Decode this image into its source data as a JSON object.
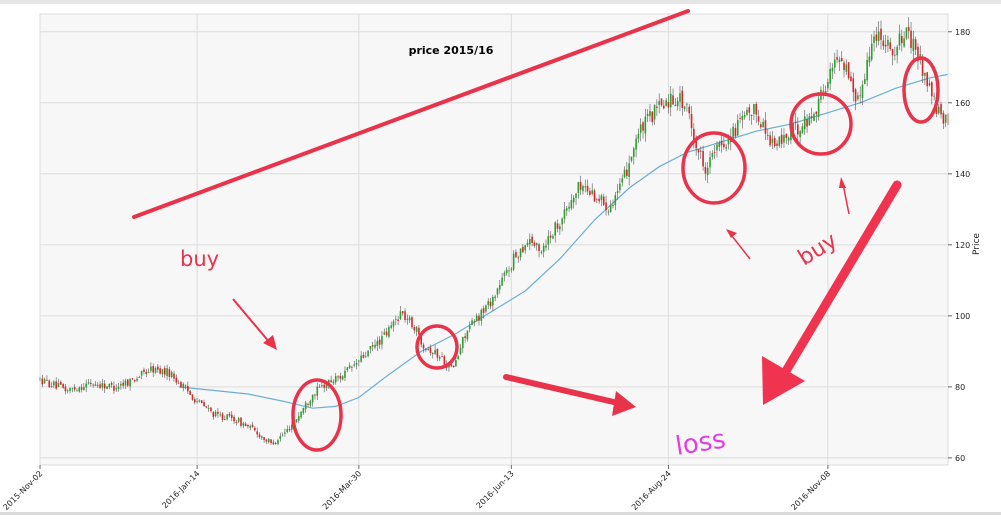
{
  "chart_data": {
    "type": "candlestick",
    "title": "price 2015/16",
    "xlabel": "",
    "ylabel": "Price",
    "ylim": [
      58,
      185
    ],
    "x_range": [
      0,
      393
    ],
    "y_ticks": [
      60,
      80,
      100,
      120,
      140,
      160,
      180
    ],
    "x_ticks": [
      {
        "label": "2015-Nov-02",
        "x": 0
      },
      {
        "label": "2016-Jan-14",
        "x": 68
      },
      {
        "label": "2016-Mar-30",
        "x": 138
      },
      {
        "label": "2016-Jun-13",
        "x": 204
      },
      {
        "label": "2016-Aug-24",
        "x": 272
      },
      {
        "label": "2016-Nov-08",
        "x": 341
      }
    ],
    "grid": true,
    "up_color": "#2ca02c",
    "down_color": "#d62728",
    "ma_color": "#6aaed6",
    "price_path": [
      [
        0,
        82
      ],
      [
        12,
        79
      ],
      [
        22,
        81
      ],
      [
        32,
        80
      ],
      [
        40,
        82
      ],
      [
        48,
        85
      ],
      [
        56,
        84
      ],
      [
        62,
        80
      ],
      [
        68,
        76
      ],
      [
        76,
        72
      ],
      [
        84,
        71
      ],
      [
        92,
        68
      ],
      [
        100,
        64
      ],
      [
        106,
        67
      ],
      [
        112,
        72
      ],
      [
        118,
        78
      ],
      [
        124,
        81
      ],
      [
        130,
        83
      ],
      [
        136,
        86
      ],
      [
        144,
        91
      ],
      [
        150,
        95
      ],
      [
        156,
        101
      ],
      [
        162,
        97
      ],
      [
        166,
        92
      ],
      [
        170,
        90
      ],
      [
        174,
        88
      ],
      [
        178,
        85
      ],
      [
        180,
        87
      ],
      [
        184,
        95
      ],
      [
        190,
        100
      ],
      [
        196,
        105
      ],
      [
        200,
        110
      ],
      [
        206,
        117
      ],
      [
        212,
        122
      ],
      [
        216,
        118
      ],
      [
        222,
        124
      ],
      [
        228,
        130
      ],
      [
        234,
        137
      ],
      [
        240,
        134
      ],
      [
        246,
        131
      ],
      [
        252,
        137
      ],
      [
        258,
        150
      ],
      [
        264,
        156
      ],
      [
        270,
        160
      ],
      [
        276,
        162
      ],
      [
        280,
        158
      ],
      [
        284,
        148
      ],
      [
        288,
        142
      ],
      [
        292,
        146
      ],
      [
        298,
        150
      ],
      [
        304,
        155
      ],
      [
        310,
        158
      ],
      [
        314,
        152
      ],
      [
        318,
        148
      ],
      [
        322,
        150
      ],
      [
        328,
        153
      ],
      [
        334,
        156
      ],
      [
        338,
        162
      ],
      [
        342,
        168
      ],
      [
        346,
        174
      ],
      [
        350,
        168
      ],
      [
        354,
        160
      ],
      [
        358,
        172
      ],
      [
        362,
        180
      ],
      [
        366,
        178
      ],
      [
        370,
        174
      ],
      [
        374,
        180
      ],
      [
        378,
        176
      ],
      [
        382,
        170
      ],
      [
        386,
        162
      ],
      [
        390,
        155
      ],
      [
        393,
        155
      ]
    ],
    "moving_average": [
      [
        60,
        80
      ],
      [
        75,
        79
      ],
      [
        90,
        78
      ],
      [
        105,
        76
      ],
      [
        118,
        74
      ],
      [
        128,
        74.5
      ],
      [
        138,
        77
      ],
      [
        150,
        83
      ],
      [
        165,
        90
      ],
      [
        180,
        95
      ],
      [
        195,
        101
      ],
      [
        210,
        107
      ],
      [
        225,
        116
      ],
      [
        240,
        127
      ],
      [
        255,
        136
      ],
      [
        268,
        142
      ],
      [
        280,
        146
      ],
      [
        295,
        149
      ],
      [
        310,
        152
      ],
      [
        325,
        154
      ],
      [
        340,
        157
      ],
      [
        355,
        160
      ],
      [
        370,
        164
      ],
      [
        385,
        167
      ],
      [
        393,
        168
      ]
    ],
    "annotations": {
      "buy_left": "buy",
      "buy_right": "buy",
      "loss": "loss"
    }
  }
}
